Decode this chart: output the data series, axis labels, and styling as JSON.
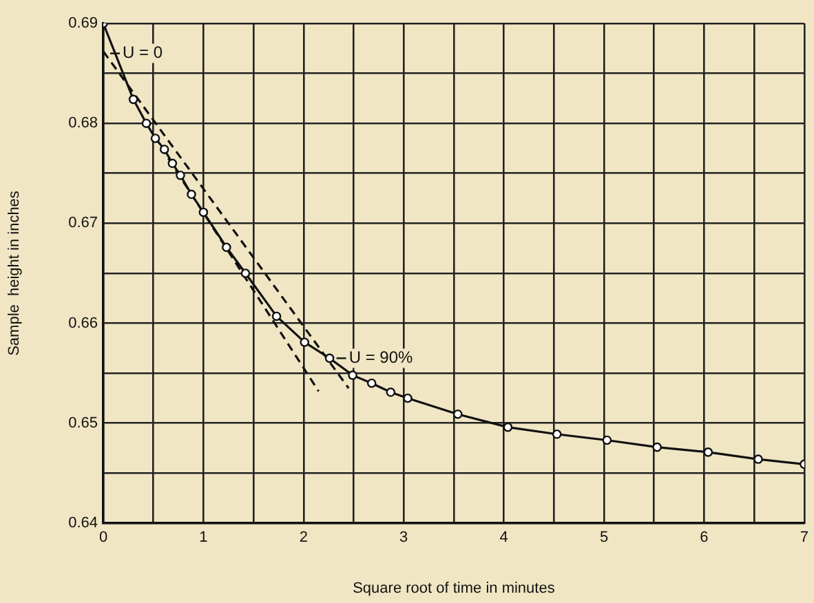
{
  "chart_data": {
    "type": "line",
    "xlabel": "Square root of time in minutes",
    "ylabel": "Sample  height in inches",
    "xlim": [
      0,
      7
    ],
    "ylim": [
      0.64,
      0.69
    ],
    "xticks": [
      0,
      {
        "value": 0.5,
        "label": null
      },
      1,
      {
        "value": 1.5,
        "label": null
      },
      2,
      {
        "value": 2.5,
        "label": null
      },
      3,
      {
        "value": 3.5,
        "label": null
      },
      4,
      {
        "value": 4.5,
        "label": null
      },
      5,
      {
        "value": 5.5,
        "label": null
      },
      6,
      {
        "value": 6.5,
        "label": null
      },
      7
    ],
    "yticks": [
      0.64,
      {
        "value": 0.645,
        "label": null
      },
      0.65,
      {
        "value": 0.655,
        "label": null
      },
      0.66,
      {
        "value": 0.665,
        "label": null
      },
      0.67,
      {
        "value": 0.675,
        "label": null
      },
      0.68,
      {
        "value": 0.685,
        "label": null
      },
      0.69
    ],
    "grid": true,
    "legend": false,
    "series": [
      {
        "type": "line",
        "color": "#111111",
        "marker": "circle",
        "line_style": "solid",
        "x": [
          0,
          0.3,
          0.43,
          0.52,
          0.61,
          0.69,
          0.77,
          0.88,
          1.0,
          1.23,
          1.42,
          1.73,
          2.01,
          2.26,
          2.49,
          2.68,
          2.87,
          3.04,
          3.54,
          4.04,
          4.53,
          5.03,
          5.53,
          6.04,
          6.54,
          7.0
        ],
        "values": [
          0.69,
          0.6824,
          0.68,
          0.6785,
          0.6774,
          0.676,
          0.6748,
          0.6729,
          0.6711,
          0.6676,
          0.665,
          0.6607,
          0.6581,
          0.6565,
          0.6548,
          0.654,
          0.6531,
          0.6525,
          0.6509,
          0.6496,
          0.6489,
          0.6483,
          0.6476,
          0.6471,
          0.6464,
          0.6459
        ]
      },
      {
        "type": "line",
        "color": "#111111",
        "marker": "none",
        "line_style": "dashed",
        "x": [
          0,
          2.45
        ],
        "values": [
          0.6872,
          0.6535
        ]
      },
      {
        "type": "line",
        "color": "#111111",
        "marker": "none",
        "line_style": "dashed",
        "x": [
          0.5,
          2.15
        ],
        "values": [
          0.6788,
          0.6532
        ]
      }
    ],
    "annotations": [
      {
        "text": "U = 0",
        "x": 0,
        "y": 0.687
      },
      {
        "text": "U = 90%",
        "x": 2.26,
        "y": 0.6565
      }
    ]
  }
}
